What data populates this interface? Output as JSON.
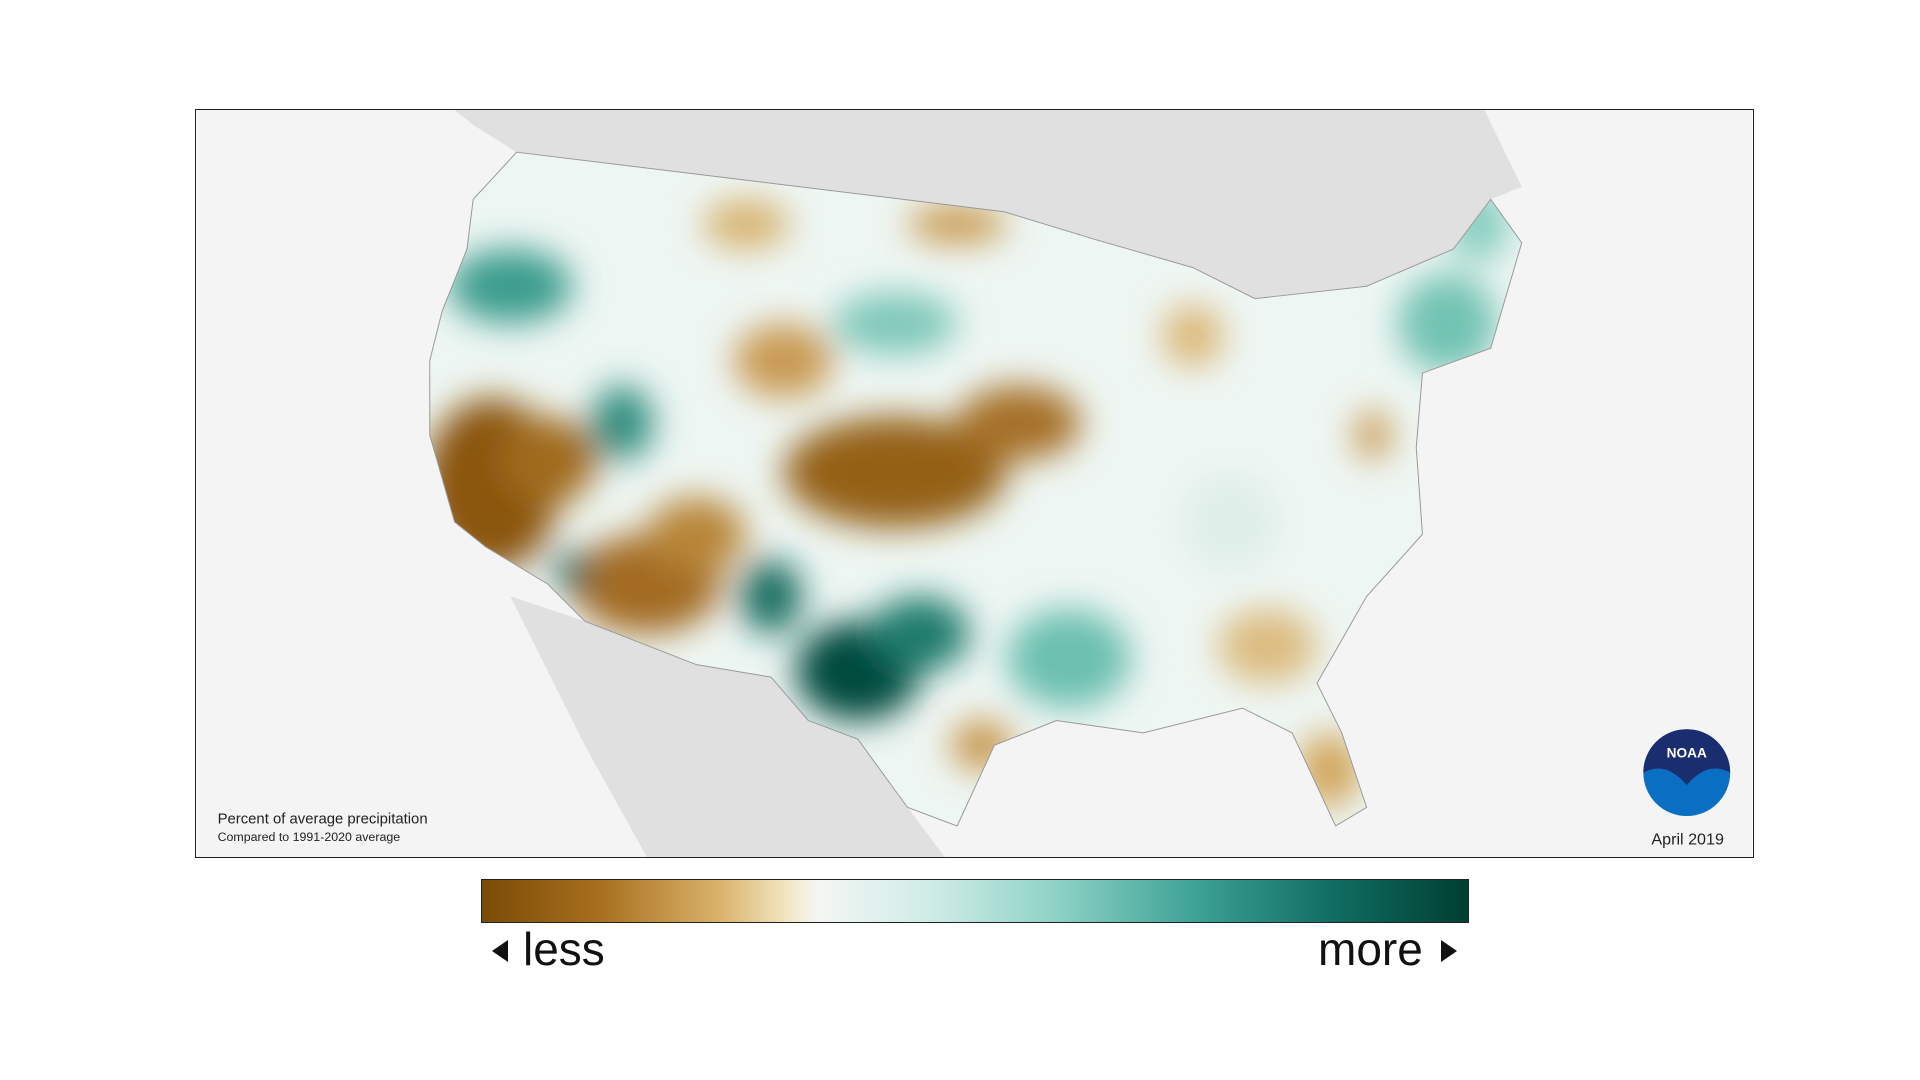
{
  "map": {
    "title": "Percent of average precipitation",
    "subtitle": "Compared to 1991-2020 average",
    "date": "April 2019",
    "logo": "NOAA"
  },
  "legend": {
    "low": "less",
    "high": "more"
  }
}
